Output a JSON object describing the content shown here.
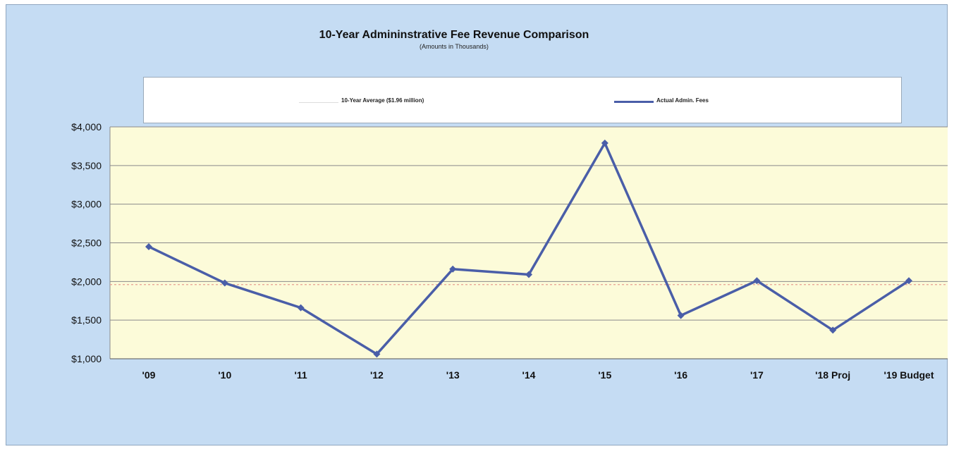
{
  "chart_data": {
    "type": "line",
    "title": "10-Year Admininstrative Fee Revenue Comparison",
    "subtitle": "(Amounts in Thousands)",
    "categories": [
      "'09",
      "'10",
      "'11",
      "'12",
      "'13",
      "'14",
      "'15",
      "'16",
      "'17",
      "'18 Proj",
      "'19 Budget"
    ],
    "series": [
      {
        "name": "Actual Admin. Fees",
        "values": [
          2450,
          1980,
          1660,
          1060,
          2160,
          2090,
          3790,
          1560,
          2010,
          1370,
          2010
        ],
        "color": "#4a5ea8",
        "marker": "diamond"
      }
    ],
    "reference_line": {
      "name": "10-Year Average ($1.96 million)",
      "value": 1960,
      "color": "#e8a090"
    },
    "yticks": [
      "$4,000",
      "$3,500",
      "$3,000",
      "$2,500",
      "$2,000",
      "$1,500",
      "$1,000"
    ],
    "ylim": [
      1000,
      4000
    ],
    "grid": true,
    "legend_position": "top",
    "plot_background": "#fcfbd9",
    "frame_background": "#c5dcf3"
  }
}
